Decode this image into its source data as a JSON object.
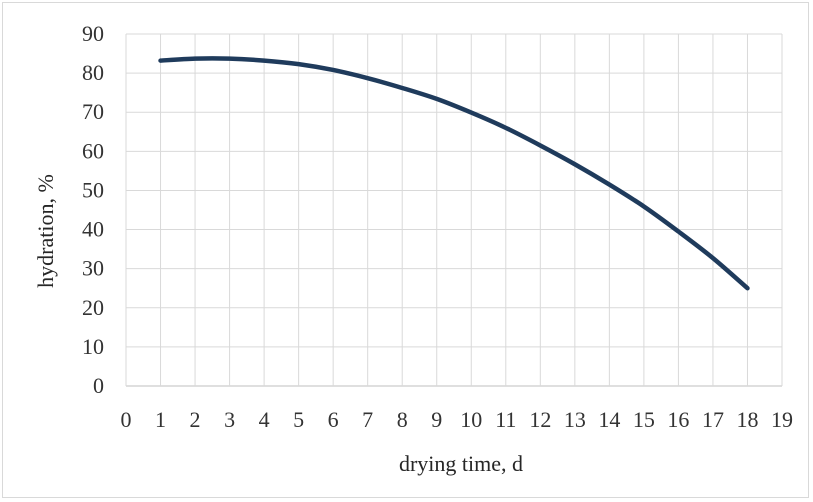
{
  "chart_data": {
    "type": "line",
    "title": "",
    "xlabel": "drying time, d",
    "ylabel": "hydration, %",
    "xlim": [
      0,
      19
    ],
    "ylim": [
      0,
      90
    ],
    "x_ticks": [
      "0",
      "1",
      "2",
      "3",
      "4",
      "5",
      "6",
      "7",
      "8",
      "9",
      "10",
      "11",
      "12",
      "13",
      "14",
      "15",
      "16",
      "17",
      "18",
      "19"
    ],
    "y_ticks": [
      "0",
      "10",
      "20",
      "30",
      "40",
      "50",
      "60",
      "70",
      "80",
      "90"
    ],
    "grid": true,
    "legend": "none",
    "series": [
      {
        "color": "#1f3b5c",
        "x": [
          1,
          2,
          3,
          4,
          5,
          6,
          7,
          8,
          9,
          10,
          11,
          12,
          13,
          14,
          15,
          16,
          17,
          18
        ],
        "values": [
          83.2,
          83.7,
          83.7,
          83.2,
          82.3,
          80.8,
          78.7,
          76.2,
          73.4,
          69.9,
          66.0,
          61.5,
          56.7,
          51.5,
          45.9,
          39.5,
          32.7,
          25.0
        ]
      }
    ]
  }
}
